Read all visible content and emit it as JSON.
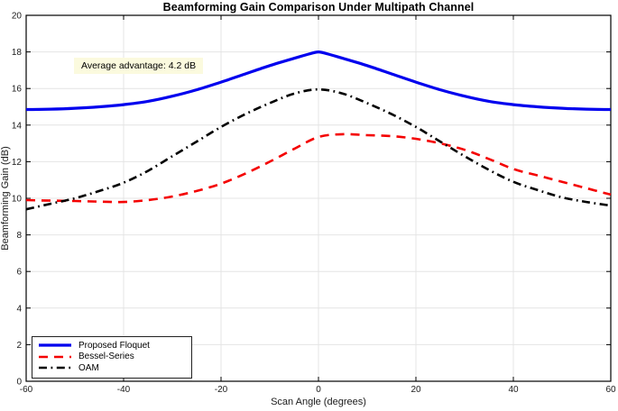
{
  "chart_data": {
    "type": "line",
    "title": "Beamforming Gain Comparison Under Multipath Channel",
    "xlabel": "Scan Angle (degrees)",
    "ylabel": "Beamforming Gain (dB)",
    "xlim": [
      -60,
      60
    ],
    "ylim": [
      0,
      20
    ],
    "xticks": [
      -60,
      -40,
      -20,
      0,
      20,
      40,
      60
    ],
    "yticks": [
      0,
      2,
      4,
      6,
      8,
      10,
      12,
      14,
      16,
      18,
      20
    ],
    "grid": true,
    "grid_color": "#E4E4E4",
    "axis_color": "#000000",
    "legend_position": "bottom-left",
    "annotation": {
      "text": "Average advantage: 4.2 dB",
      "bg": "#FBFADE"
    },
    "series": [
      {
        "name": "Proposed Floquet",
        "color": "#0000EE",
        "style": "solid",
        "width": 3.2,
        "x": [
          -60,
          -55,
          -50,
          -45,
          -40,
          -35,
          -30,
          -25,
          -20,
          -15,
          -10,
          -5,
          -2,
          0,
          2,
          5,
          10,
          15,
          20,
          25,
          30,
          35,
          40,
          45,
          50,
          55,
          60
        ],
        "values": [
          14.85,
          14.87,
          14.92,
          15.0,
          15.12,
          15.3,
          15.58,
          15.93,
          16.35,
          16.8,
          17.25,
          17.65,
          17.88,
          18.0,
          17.88,
          17.65,
          17.25,
          16.8,
          16.35,
          15.93,
          15.58,
          15.3,
          15.12,
          15.0,
          14.92,
          14.87,
          14.85
        ]
      },
      {
        "name": "Bessel-Series",
        "color": "#F40000",
        "style": "dashed",
        "width": 2.6,
        "x": [
          -60,
          -55,
          -50,
          -45,
          -40,
          -35,
          -30,
          -25,
          -20,
          -15,
          -10,
          -5,
          0,
          5,
          10,
          15,
          20,
          25,
          30,
          35,
          40,
          45,
          50,
          55,
          60
        ],
        "values": [
          9.9,
          9.87,
          9.85,
          9.82,
          9.8,
          9.9,
          10.1,
          10.4,
          10.8,
          11.35,
          12.0,
          12.7,
          13.35,
          13.5,
          13.45,
          13.4,
          13.25,
          13.0,
          12.65,
          12.15,
          11.6,
          11.25,
          10.9,
          10.55,
          10.2
        ]
      },
      {
        "name": "OAM",
        "color": "#000000",
        "style": "dashdot",
        "width": 2.6,
        "x": [
          -60,
          -55,
          -50,
          -45,
          -40,
          -35,
          -30,
          -25,
          -20,
          -15,
          -10,
          -5,
          0,
          5,
          10,
          15,
          20,
          25,
          30,
          35,
          40,
          45,
          50,
          55,
          60
        ],
        "values": [
          9.4,
          9.7,
          10.0,
          10.4,
          10.85,
          11.5,
          12.3,
          13.1,
          13.9,
          14.6,
          15.2,
          15.72,
          15.95,
          15.72,
          15.2,
          14.6,
          13.9,
          13.1,
          12.3,
          11.55,
          10.9,
          10.45,
          10.05,
          9.8,
          9.6
        ]
      }
    ]
  }
}
